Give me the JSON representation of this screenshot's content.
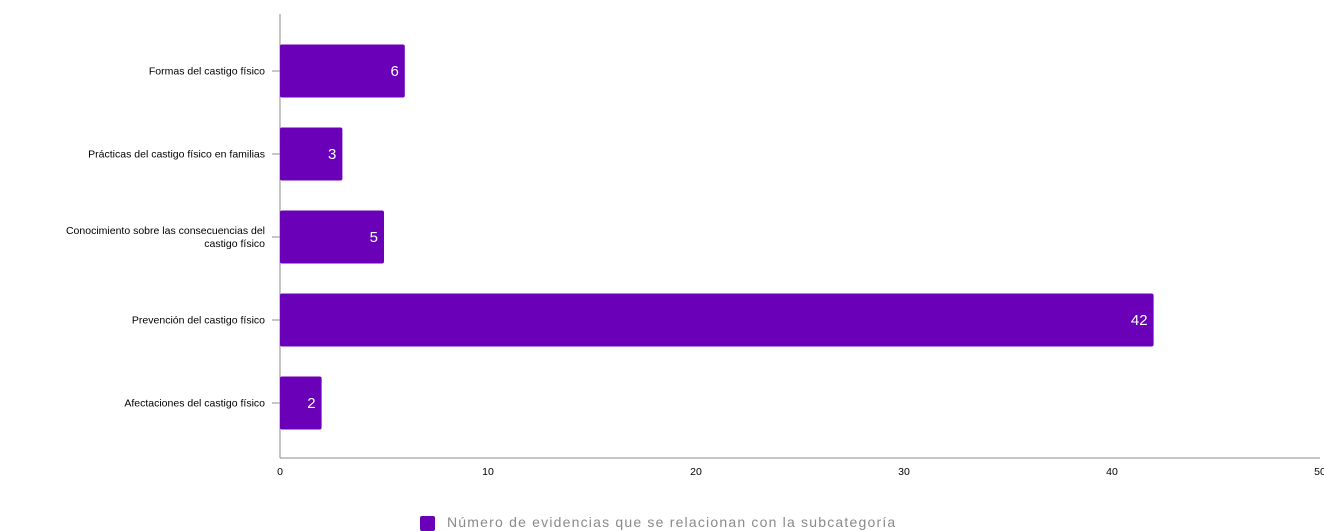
{
  "chart_data": {
    "type": "bar",
    "orientation": "horizontal",
    "categories": [
      "Formas del castigo físico",
      "Prácticas del castigo físico en familias",
      "Conocimiento sobre las consecuencias del castigo físico",
      "Prevención del castigo físico",
      "Afectaciones del castigo físico"
    ],
    "series": [
      {
        "name": "Número de evidencias que se relacionan con la subcategoría",
        "values": [
          6,
          3,
          5,
          42,
          2
        ],
        "color": "#6a00b8"
      }
    ],
    "xlim": [
      0,
      50
    ],
    "xticks": [
      0,
      10,
      20,
      30,
      40,
      50
    ],
    "xlabel": "",
    "ylabel": "",
    "title": "",
    "grid": false,
    "legend_position": "bottom"
  }
}
